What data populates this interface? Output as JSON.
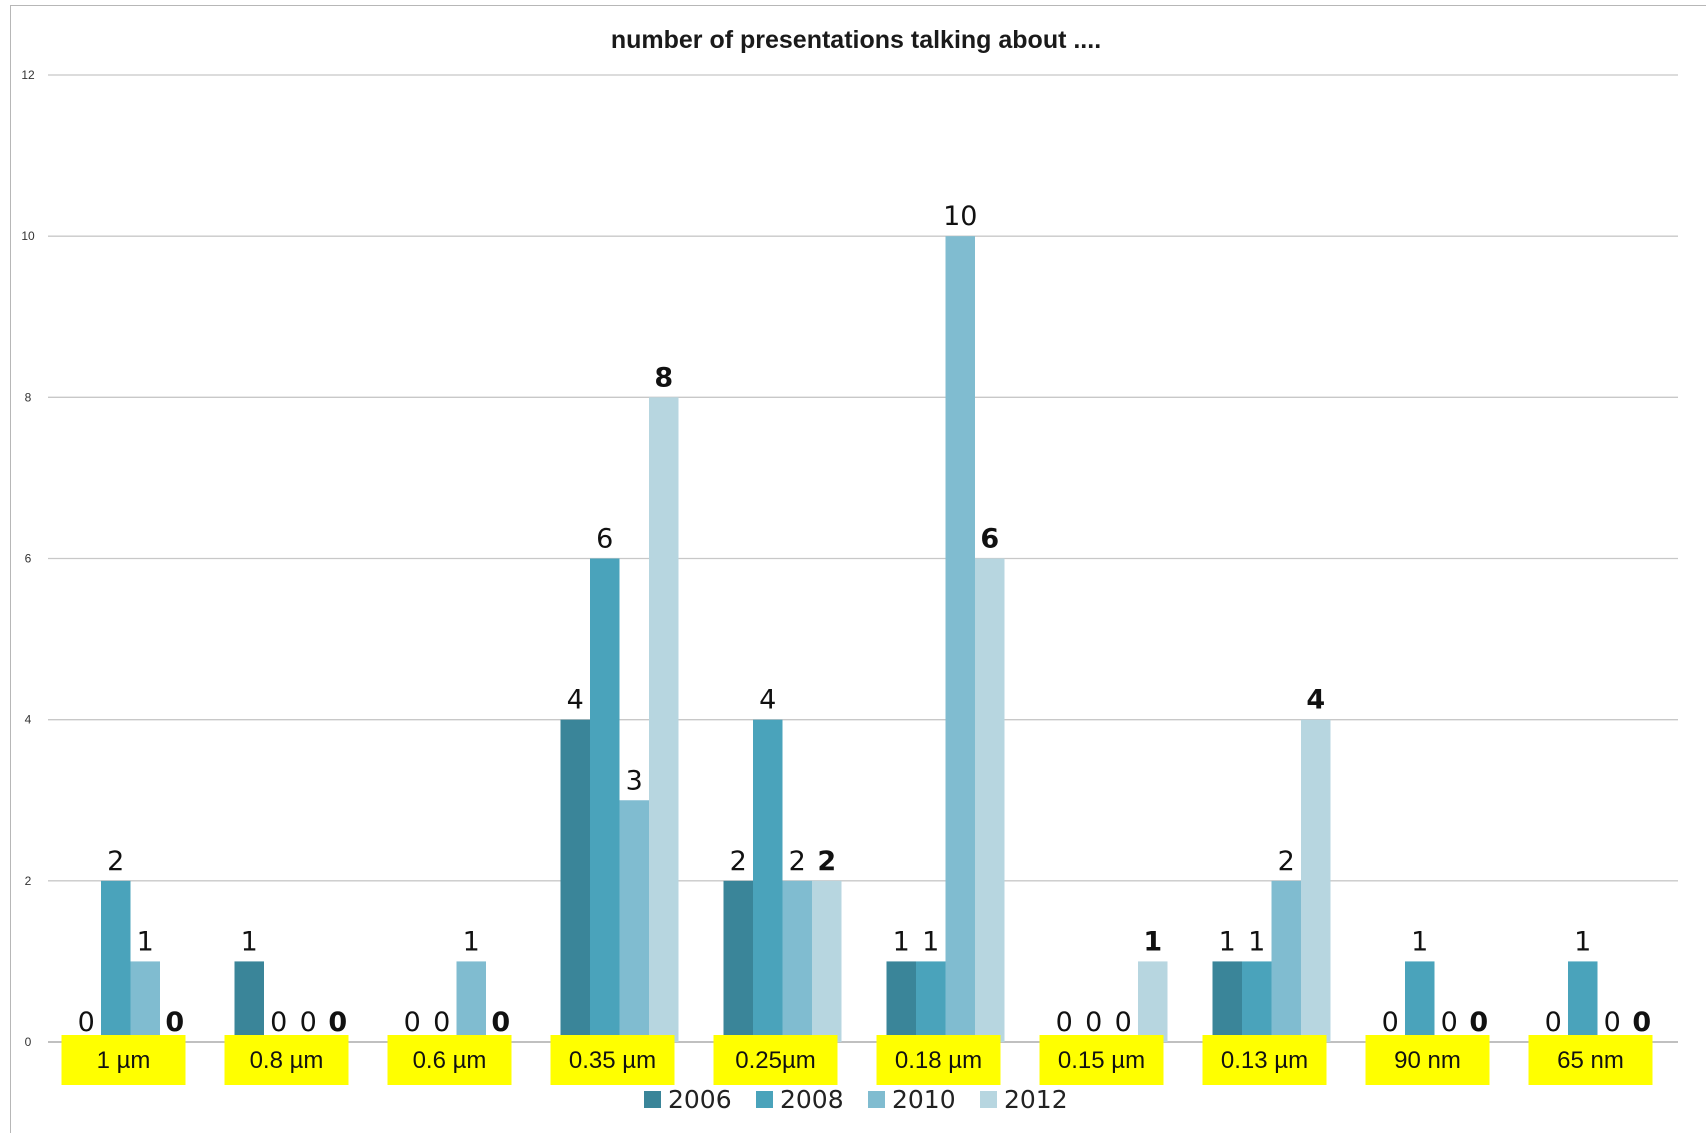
{
  "chart_data": {
    "type": "bar",
    "title": "number of presentations  talking about ....",
    "xlabel": "",
    "ylabel": "",
    "ylim": [
      0,
      12
    ],
    "yticks": [
      "0",
      "2",
      "4",
      "6",
      "8",
      "10",
      "12"
    ],
    "grid": true,
    "legend_position": "bottom",
    "categories": [
      "1 µm",
      "0.8 µm",
      "0.6 µm",
      "0.35 µm",
      "0.25µm",
      "0.18 µm",
      "0.15 µm",
      "0.13 µm",
      "90 nm",
      "65 nm"
    ],
    "category_label_color": "#ffff00",
    "series": [
      {
        "name": "2006",
        "color": "#3a8599",
        "values": [
          0,
          1,
          0,
          4,
          2,
          1,
          0,
          1,
          0,
          0
        ],
        "value_labels": [
          "0",
          "1",
          "0",
          "4",
          "2",
          "1",
          "0",
          "1",
          "0",
          "0"
        ],
        "labels_bold": false
      },
      {
        "name": "2008",
        "color": "#4aa3bb",
        "values": [
          2,
          0,
          0,
          6,
          4,
          1,
          0,
          1,
          1,
          1
        ],
        "value_labels": [
          "2",
          "0",
          "0",
          "6",
          "4",
          "1",
          "0",
          "1",
          "1",
          "1"
        ],
        "labels_bold": false
      },
      {
        "name": "2010",
        "color": "#80bcd0",
        "values": [
          1,
          0,
          1,
          3,
          2,
          10,
          0,
          2,
          0,
          0
        ],
        "value_labels": [
          "1",
          "0",
          "1",
          "3",
          "2",
          "10",
          "0",
          "2",
          "0",
          "0"
        ],
        "labels_bold": false
      },
      {
        "name": "2012",
        "color": "#b7d6e0",
        "values": [
          0,
          0,
          0,
          8,
          2,
          6,
          1,
          4,
          0,
          0
        ],
        "value_labels": [
          "0",
          "0",
          "0",
          "8",
          "2",
          "6",
          "1",
          "4",
          "0",
          "0"
        ],
        "labels_bold": true
      }
    ]
  }
}
